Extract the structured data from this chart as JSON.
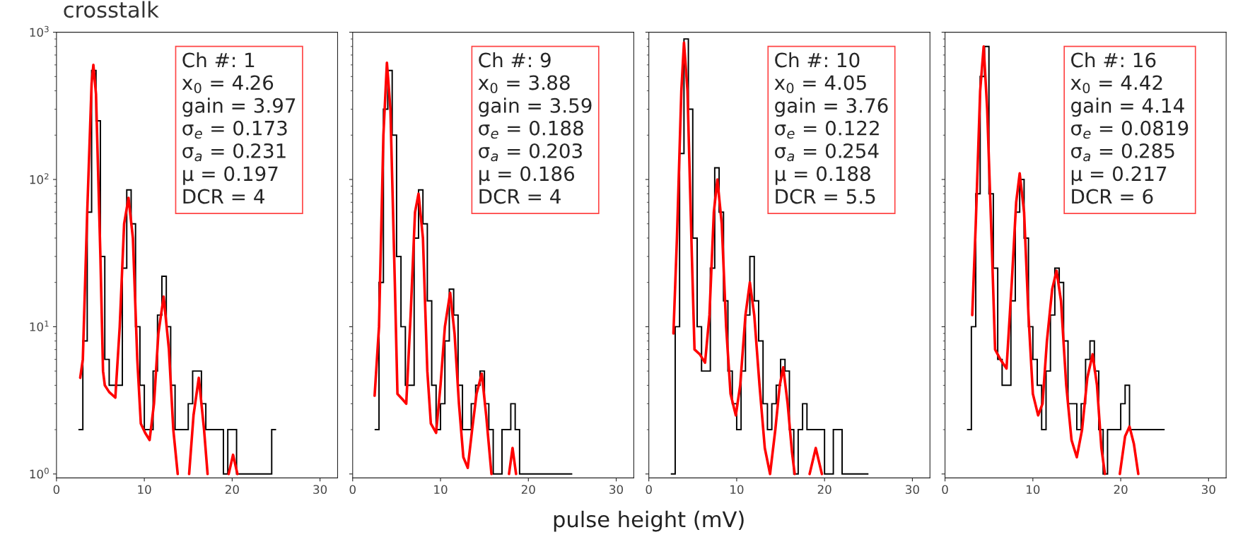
{
  "chart_data": [
    {
      "type": "histogram",
      "title": "crosstalk",
      "log": "y",
      "xlim": [
        0,
        32
      ],
      "xticks": [
        0,
        10,
        20,
        30
      ],
      "ylim": [
        0.94,
        1000
      ],
      "yticks": [
        {
          "value": 1,
          "label": "10$^{0}$"
        },
        {
          "value": 10,
          "label": "10$^{1}$"
        },
        {
          "value": 100,
          "label": "10$^{2}$"
        },
        {
          "value": 1000,
          "label": "10$^{3}$"
        }
      ],
      "color": "#000000",
      "bins": [
        2.5,
        3.0,
        3.5,
        4.0,
        4.5,
        5.0,
        5.5,
        6.0,
        6.5,
        7.0,
        7.5,
        8.0,
        8.5,
        9.0,
        9.5,
        10.0,
        10.5,
        11.0,
        11.5,
        12.0,
        12.5,
        13.0,
        13.5,
        14.0,
        14.5,
        15.0,
        15.5,
        16.0,
        16.5,
        17.0,
        17.5,
        18.0,
        18.5,
        19.0,
        19.5,
        20.0,
        20.5,
        21.0,
        21.5,
        22.0,
        22.5,
        23.0,
        23.5,
        24.0,
        24.5,
        25.0
      ],
      "values": [
        2,
        8,
        60,
        550,
        250,
        30,
        6,
        4,
        4,
        4,
        25,
        85,
        50,
        10,
        4,
        2,
        2,
        5,
        12,
        22,
        10,
        4,
        2,
        2,
        2,
        3,
        5,
        5,
        3,
        2,
        2,
        2,
        2,
        1,
        2,
        2,
        1,
        1,
        1,
        1,
        1,
        1,
        1,
        1,
        2
      ],
      "series": [
        {
          "type": "line",
          "color": "#ff0000",
          "x": [
            2.7,
            3.0,
            3.5,
            4.0,
            4.2,
            4.5,
            5.0,
            5.3,
            5.5,
            6.0,
            6.7,
            7.2,
            7.7,
            8.2,
            8.7,
            9.2,
            9.6,
            10.1,
            10.6,
            11.1,
            11.6,
            12.2,
            12.8,
            13.3,
            13.8,
            14.5,
            15.1,
            15.6,
            16.2,
            16.8,
            17.2,
            18.5,
            19.6,
            20.1,
            20.6
          ],
          "values": [
            4.5,
            6,
            60,
            450,
            600,
            380,
            30,
            5,
            4,
            3.6,
            3.3,
            10,
            50,
            75,
            40,
            6,
            2.2,
            1.9,
            1.7,
            3,
            9,
            16,
            7,
            2,
            1.0,
            null,
            1.0,
            2.5,
            4.5,
            2,
            1.0,
            null,
            1.0,
            1.35,
            1.0
          ]
        }
      ],
      "annotations": [
        "Ch #: 1",
        "x$_{0}$ = 4.26",
        "gain = 3.97",
        "σ$_{e}$ = 0.173",
        "σ$_{a}$ = 0.231",
        "μ = 0.197",
        "DCR = 4"
      ]
    },
    {
      "type": "histogram",
      "xlabel": "pulse height (mV)",
      "log": "y",
      "xlim": [
        0,
        32
      ],
      "xticks": [
        0,
        10,
        20,
        30
      ],
      "ylim": [
        0.94,
        1000
      ],
      "yticks": [
        {
          "value": 1,
          "label": null
        },
        {
          "value": 10,
          "label": null
        },
        {
          "value": 100,
          "label": null
        },
        {
          "value": 1000,
          "label": null
        }
      ],
      "tick_labels": "x",
      "color": "#000000",
      "bins": [
        2.5,
        3.0,
        3.5,
        4.0,
        4.5,
        5.0,
        5.5,
        6.0,
        6.5,
        7.0,
        7.5,
        8.0,
        8.5,
        9.0,
        9.5,
        10.0,
        10.5,
        11.0,
        11.5,
        12.0,
        12.5,
        13.0,
        13.5,
        14.0,
        14.5,
        15.0,
        15.5,
        16.0,
        16.5,
        17.0,
        17.5,
        18.0,
        18.5,
        19.0,
        19.5,
        20.0,
        20.5,
        21.0,
        21.5,
        22.0,
        22.5,
        23.0,
        23.5,
        24.0,
        24.5,
        25.0
      ],
      "values": [
        2,
        20,
        300,
        550,
        200,
        30,
        10,
        4,
        4,
        40,
        85,
        50,
        15,
        4,
        2,
        3,
        8,
        18,
        12,
        4,
        2,
        2,
        3,
        4,
        5,
        3,
        2,
        1,
        1,
        2,
        2,
        3,
        2,
        1,
        1,
        1,
        1,
        1,
        1,
        1,
        1,
        1,
        1,
        1,
        1
      ],
      "series": [
        {
          "type": "line",
          "color": "#ff0000",
          "x": [
            2.5,
            3.0,
            3.5,
            3.9,
            4.3,
            4.8,
            5.1,
            5.7,
            6.1,
            6.6,
            7.1,
            7.5,
            8.0,
            8.5,
            8.9,
            9.5,
            10.0,
            10.5,
            11.1,
            11.6,
            12.1,
            12.6,
            13.1,
            13.6,
            14.1,
            14.7,
            15.2,
            15.8,
            16.5,
            17.8,
            18.2,
            18.6
          ],
          "values": [
            3.4,
            10,
            200,
            620,
            300,
            20,
            3.5,
            3.2,
            3.0,
            12,
            60,
            80,
            40,
            5,
            2.2,
            1.9,
            4,
            10,
            17,
            9,
            3,
            1.3,
            1.1,
            2,
            3.5,
            4.8,
            2.5,
            1.0,
            null,
            1.0,
            1.5,
            1.0
          ]
        }
      ],
      "annotations": [
        "Ch #: 9",
        "x$_{0}$ = 3.88",
        "gain = 3.59",
        "σ$_{e}$ = 0.188",
        "σ$_{a}$ = 0.203",
        "μ = 0.186",
        "DCR = 4"
      ]
    },
    {
      "type": "histogram",
      "log": "y",
      "xlim": [
        0,
        32
      ],
      "xticks": [
        0,
        10,
        20,
        30
      ],
      "ylim": [
        0.94,
        1000
      ],
      "yticks": [
        {
          "value": 1,
          "label": null
        },
        {
          "value": 10,
          "label": null
        },
        {
          "value": 100,
          "label": null
        },
        {
          "value": 1000,
          "label": null
        }
      ],
      "tick_labels": "x",
      "color": "#000000",
      "bins": [
        2.5,
        3.0,
        3.5,
        4.0,
        4.5,
        5.0,
        5.5,
        6.0,
        6.5,
        7.0,
        7.5,
        8.0,
        8.5,
        9.0,
        9.5,
        10.0,
        10.5,
        11.0,
        11.5,
        12.0,
        12.5,
        13.0,
        13.5,
        14.0,
        14.5,
        15.0,
        15.5,
        16.0,
        16.5,
        17.0,
        17.5,
        18.0,
        18.5,
        19.0,
        19.5,
        20.0,
        20.5,
        21.0,
        21.5,
        22.0,
        22.5,
        23.0,
        23.5,
        24.0,
        24.5,
        25.0
      ],
      "values": [
        1,
        10,
        150,
        900,
        300,
        40,
        10,
        5,
        5,
        25,
        120,
        60,
        15,
        5,
        3,
        2,
        5,
        12,
        30,
        15,
        8,
        3,
        2,
        3,
        4,
        6,
        5,
        2,
        1,
        2,
        3,
        2,
        2,
        2,
        2,
        1,
        1,
        2,
        2,
        1,
        1,
        1,
        1,
        1,
        1
      ],
      "series": [
        {
          "type": "line",
          "color": "#ff0000",
          "x": [
            2.8,
            3.2,
            3.7,
            4.0,
            4.4,
            4.9,
            5.2,
            5.8,
            6.4,
            6.9,
            7.4,
            7.8,
            8.3,
            8.8,
            9.3,
            9.9,
            10.4,
            11.0,
            11.5,
            12.0,
            12.6,
            13.2,
            13.8,
            14.4,
            14.9,
            15.3,
            15.8,
            16.3,
            16.6,
            17.5,
            18.3,
            19.0,
            19.7
          ],
          "values": [
            9,
            40,
            400,
            850,
            400,
            30,
            7,
            6.5,
            5.7,
            12,
            60,
            100,
            50,
            10,
            3.5,
            2.5,
            4,
            12,
            20,
            12,
            4,
            1.5,
            1.0,
            2,
            4,
            5.3,
            3,
            1.4,
            1.0,
            null,
            1.0,
            1.5,
            1.0
          ]
        }
      ],
      "annotations": [
        "Ch #: 10",
        "x$_{0}$ = 4.05",
        "gain = 3.76",
        "σ$_{e}$ = 0.122",
        "σ$_{a}$ = 0.254",
        "μ = 0.188",
        "DCR = 5.5"
      ]
    },
    {
      "type": "histogram",
      "log": "y",
      "xlim": [
        0,
        32
      ],
      "xticks": [
        0,
        10,
        20,
        30
      ],
      "ylim": [
        0.94,
        1000
      ],
      "yticks": [
        {
          "value": 1,
          "label": null
        },
        {
          "value": 10,
          "label": null
        },
        {
          "value": 100,
          "label": null
        },
        {
          "value": 1000,
          "label": null
        }
      ],
      "tick_labels": "x",
      "color": "#000000",
      "bins": [
        2.5,
        3.0,
        3.5,
        4.0,
        4.5,
        5.0,
        5.5,
        6.0,
        6.5,
        7.0,
        7.5,
        8.0,
        8.5,
        9.0,
        9.5,
        10.0,
        10.5,
        11.0,
        11.5,
        12.0,
        12.5,
        13.0,
        13.5,
        14.0,
        14.5,
        15.0,
        15.5,
        16.0,
        16.5,
        17.0,
        17.5,
        18.0,
        18.5,
        19.0,
        19.5,
        20.0,
        20.5,
        21.0,
        21.5,
        22.0,
        22.5,
        23.0,
        23.5,
        24.0,
        24.5,
        25.0
      ],
      "values": [
        2,
        10,
        80,
        500,
        800,
        80,
        25,
        6,
        4,
        4,
        15,
        60,
        100,
        40,
        10,
        6,
        4,
        2,
        5,
        12,
        25,
        20,
        8,
        3,
        3,
        2,
        3,
        6,
        8,
        5,
        2,
        1,
        2,
        2,
        2,
        3,
        4,
        2,
        2,
        2,
        2,
        2,
        2,
        2,
        2
      ],
      "series": [
        {
          "type": "line",
          "color": "#ff0000",
          "x": [
            3.1,
            3.5,
            4.0,
            4.4,
            4.8,
            5.3,
            5.7,
            6.3,
            7.0,
            7.6,
            8.1,
            8.5,
            9.0,
            9.5,
            10.0,
            10.6,
            11.1,
            11.6,
            12.2,
            12.7,
            13.2,
            13.8,
            14.4,
            15.0,
            15.6,
            16.2,
            16.8,
            17.3,
            17.8,
            18.2,
            19.0,
            19.9,
            20.5,
            21.0,
            21.5,
            22.0
          ],
          "values": [
            12,
            50,
            400,
            800,
            300,
            40,
            7,
            6,
            5.2,
            20,
            70,
            110,
            60,
            12,
            3.5,
            2.5,
            3,
            8,
            18,
            24,
            15,
            4,
            1.7,
            1.3,
            2,
            4.5,
            6.5,
            4,
            1.5,
            1.0,
            null,
            1.0,
            1.8,
            2.1,
            1.6,
            1.0
          ]
        }
      ],
      "annotations": [
        "Ch #: 16",
        "x$_{0}$ = 4.42",
        "gain = 4.14",
        "σ$_{e}$ = 0.0819",
        "σ$_{a}$ = 0.285",
        "μ = 0.217",
        "DCR = 6"
      ]
    }
  ]
}
